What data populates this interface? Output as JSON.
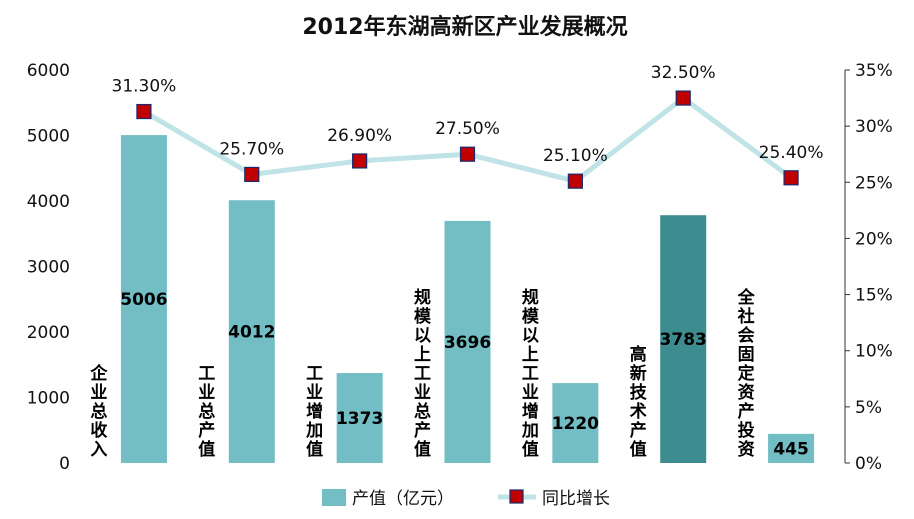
{
  "chart_data": {
    "type": "bar",
    "title": "2012年东湖高新区产业发展概况",
    "categories": [
      "企业总收入",
      "工业总产值",
      "工业增加值",
      "规模以上工业总产值",
      "规模以上工业增加值",
      "高新技术产值",
      "全社会固定资产投资"
    ],
    "series": [
      {
        "name": "产值（亿元）",
        "type": "bar",
        "axis": "left",
        "values": [
          5006,
          4012,
          1373,
          3696,
          1220,
          3783,
          445
        ],
        "value_labels": [
          "5006",
          "4012",
          "1373",
          "3696",
          "1220",
          "3783",
          "445"
        ],
        "color": "#72bec4",
        "highlight_color": "#3d8c8f",
        "highlight_index": 5
      },
      {
        "name": "同比增长",
        "type": "line",
        "axis": "right",
        "values": [
          31.3,
          25.7,
          26.9,
          27.5,
          25.1,
          32.5,
          25.4
        ],
        "value_labels": [
          "31.30%",
          "25.70%",
          "26.90%",
          "27.50%",
          "25.10%",
          "32.50%",
          "25.40%"
        ],
        "line_color": "#bfe3e6",
        "marker_color": "#c00000",
        "marker_border": "#1a2a6c"
      }
    ],
    "y_left": {
      "min": 0,
      "max": 6000,
      "ticks": [
        "0",
        "1000",
        "2000",
        "3000",
        "4000",
        "5000",
        "6000"
      ]
    },
    "y_right": {
      "min": 0,
      "max": 35,
      "ticks": [
        "0%",
        "5%",
        "10%",
        "15%",
        "20%",
        "25%",
        "30%",
        "35%"
      ]
    },
    "grid": false,
    "legend": "bottom"
  }
}
